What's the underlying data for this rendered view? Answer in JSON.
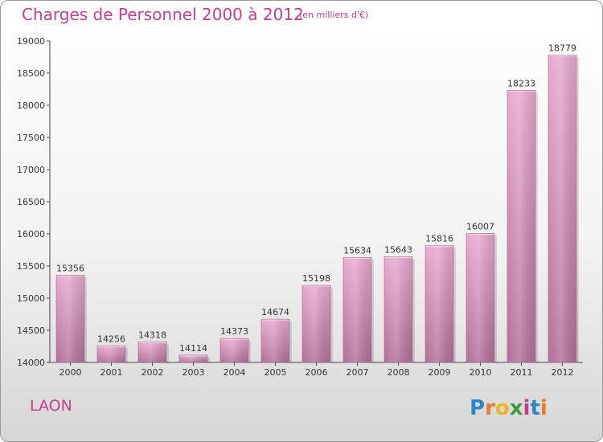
{
  "header": {
    "title": "Charges de Personnel 2000 à 2012",
    "subtitle": "(en milliers d'€)"
  },
  "footer": {
    "city": "LAON",
    "logo_text": "Proxiti"
  },
  "colors": {
    "accent": "#c43e8d",
    "bar_light": "#e9a9cf",
    "bar_dark": "#b26f98",
    "axis": "#333333"
  },
  "chart_data": {
    "type": "bar",
    "categories": [
      "2000",
      "2001",
      "2002",
      "2003",
      "2004",
      "2005",
      "2006",
      "2007",
      "2008",
      "2009",
      "2010",
      "2011",
      "2012"
    ],
    "values": [
      15356,
      14256,
      14318,
      14114,
      14373,
      14674,
      15198,
      15634,
      15643,
      15816,
      16007,
      18233,
      18779
    ],
    "title": "Charges de Personnel 2000 à 2012",
    "subtitle": "(en milliers d'€)",
    "ylim": [
      14000,
      19000
    ],
    "yticks": [
      14000,
      14500,
      15000,
      15500,
      16000,
      16500,
      17000,
      17500,
      18000,
      18500,
      19000
    ],
    "grid": false,
    "legend": "none"
  }
}
